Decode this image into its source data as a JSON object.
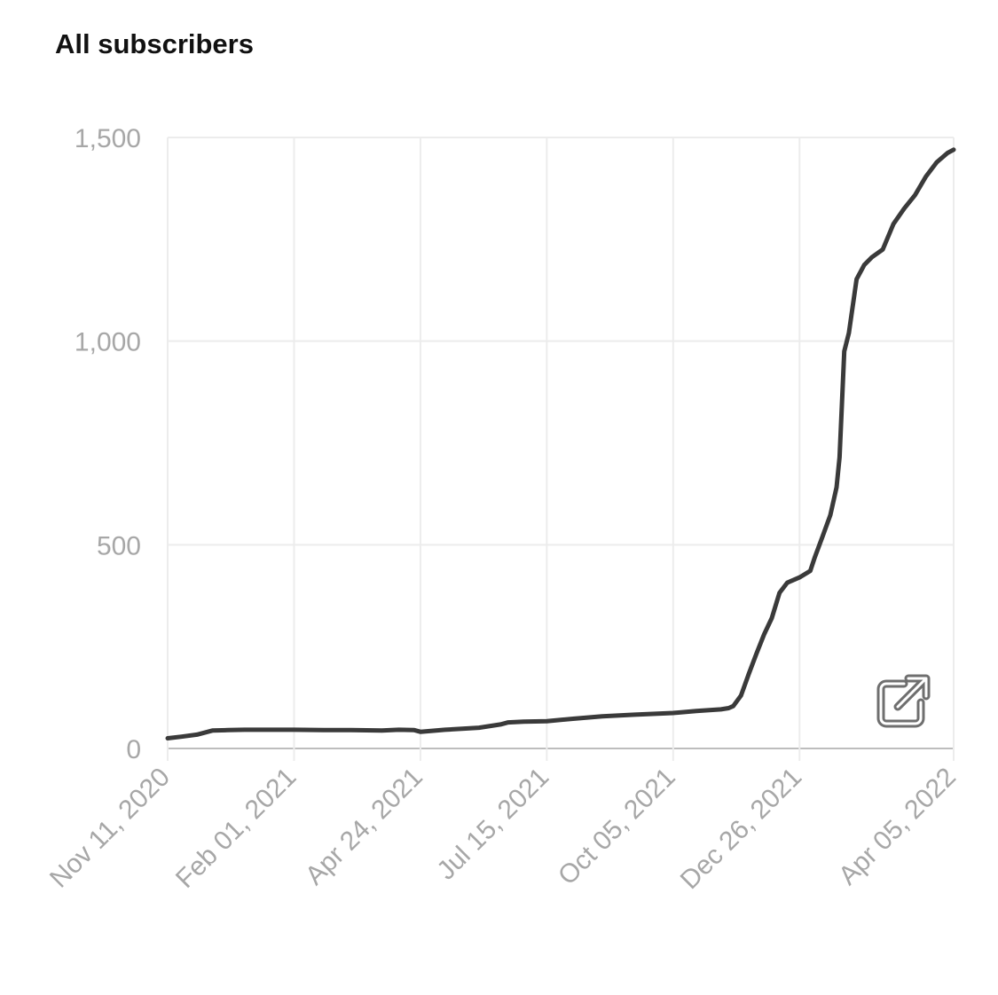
{
  "title": "All subscribers",
  "colors": {
    "line": "#3a3a3a",
    "tick_text": "#a7a7a7",
    "grid": "#ececec",
    "icon": "#6f6f6f"
  },
  "icons": {
    "open_external": "external-link-icon"
  },
  "chart_data": {
    "type": "line",
    "title": "All subscribers",
    "xlabel": "",
    "ylabel": "",
    "grid": true,
    "legend": "none",
    "ylim": [
      0,
      1500
    ],
    "yticks": [
      0,
      500,
      1000,
      1500
    ],
    "ytick_labels": [
      "0",
      "500",
      "1,000",
      "1,500"
    ],
    "xlim": [
      "2020-11-11",
      "2022-04-05"
    ],
    "xticks": [
      "2020-11-11",
      "2021-02-01",
      "2021-04-24",
      "2021-07-15",
      "2021-10-05",
      "2021-12-26",
      "2022-04-05"
    ],
    "xtick_labels": [
      "Nov 11, 2020",
      "Feb 01, 2021",
      "Apr 24, 2021",
      "Jul 15, 2021",
      "Oct 05, 2021",
      "Dec 26, 2021",
      "Apr 05, 2022"
    ],
    "series": [
      {
        "x": [
          "2020-11-11",
          "2020-11-20",
          "2020-11-30",
          "2020-12-10",
          "2020-12-20",
          "2020-12-31",
          "2021-01-10",
          "2021-01-20",
          "2021-02-01",
          "2021-02-20",
          "2021-03-10",
          "2021-03-30",
          "2021-04-10",
          "2021-04-20",
          "2021-04-24",
          "2021-05-10",
          "2021-06-01",
          "2021-06-15",
          "2021-06-20",
          "2021-06-30",
          "2021-07-15",
          "2021-08-01",
          "2021-08-20",
          "2021-09-10",
          "2021-10-05",
          "2021-10-20",
          "2021-11-05",
          "2021-11-10",
          "2021-11-13",
          "2021-11-18",
          "2021-11-23",
          "2021-11-28",
          "2021-12-03",
          "2021-12-08",
          "2021-12-13",
          "2021-12-18",
          "2021-12-26",
          "2022-01-02",
          "2022-01-05",
          "2022-01-10",
          "2022-01-15",
          "2022-01-19",
          "2022-01-21",
          "2022-01-24",
          "2022-01-27",
          "2022-02-01",
          "2022-02-06",
          "2022-02-11",
          "2022-02-18",
          "2022-02-25",
          "2022-03-04",
          "2022-03-11",
          "2022-03-18",
          "2022-03-25",
          "2022-04-01",
          "2022-04-05"
        ],
        "values": [
          25,
          29,
          34,
          44,
          45,
          46,
          46,
          46,
          46,
          45,
          45,
          44,
          46,
          45,
          41,
          46,
          51,
          59,
          64,
          66,
          67,
          73,
          79,
          83,
          87,
          92,
          96,
          99,
          104,
          130,
          182,
          232,
          280,
          320,
          382,
          407,
          420,
          436,
          470,
          521,
          573,
          641,
          715,
          975,
          1020,
          1152,
          1187,
          1206,
          1225,
          1288,
          1326,
          1359,
          1404,
          1439,
          1462,
          1470
        ]
      }
    ]
  }
}
